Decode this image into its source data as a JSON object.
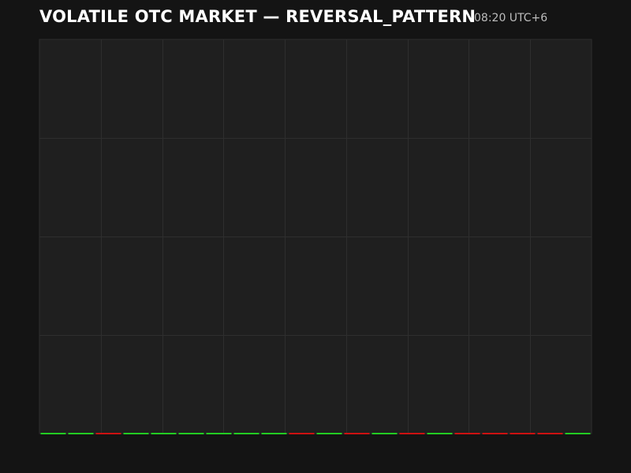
{
  "header": {
    "title": "VOLATILE OTC MARKET — REVERSAL_PATTERN",
    "time": "08:20 UTC+6"
  },
  "colors": {
    "background": "#141414",
    "plot_background": "#1f1f1f",
    "grid": "#2e2e2e",
    "up": "#22cc22",
    "down": "#cc1111",
    "title": "#ffffff",
    "time": "#bdbdbd"
  },
  "chart_data": {
    "type": "candlestick",
    "title": "VOLATILE OTC MARKET — REVERSAL_PATTERN",
    "xlabel": "",
    "ylabel": "",
    "grid": true,
    "candles": [
      {
        "direction": "up"
      },
      {
        "direction": "up"
      },
      {
        "direction": "down"
      },
      {
        "direction": "up"
      },
      {
        "direction": "up"
      },
      {
        "direction": "up"
      },
      {
        "direction": "up"
      },
      {
        "direction": "up"
      },
      {
        "direction": "up"
      },
      {
        "direction": "down"
      },
      {
        "direction": "up"
      },
      {
        "direction": "down"
      },
      {
        "direction": "up"
      },
      {
        "direction": "down"
      },
      {
        "direction": "up"
      },
      {
        "direction": "down"
      },
      {
        "direction": "down"
      },
      {
        "direction": "down"
      },
      {
        "direction": "down"
      },
      {
        "direction": "up"
      }
    ]
  }
}
